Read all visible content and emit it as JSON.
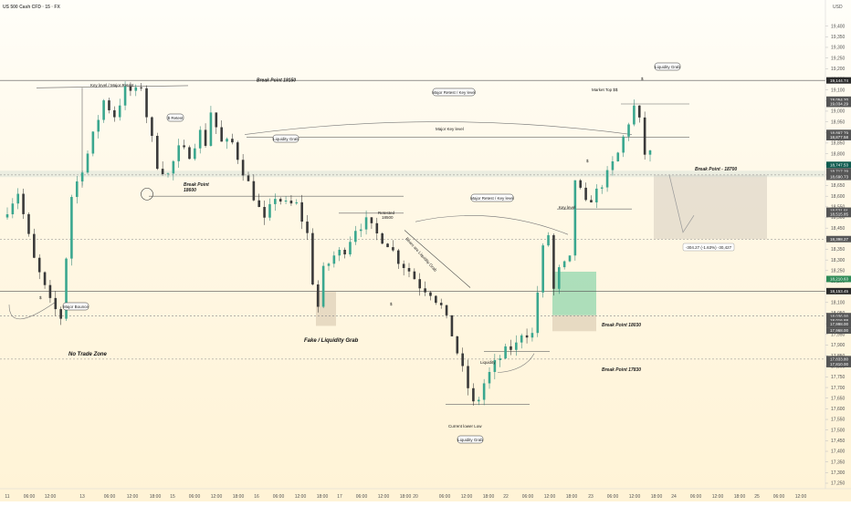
{
  "chart_data": {
    "type": "candlestick",
    "title": "US 500 Cash CFD · 15 · FX",
    "currency": "USD",
    "ylim": [
      17250,
      19450
    ],
    "y_ticks": [
      19400,
      19350,
      19300,
      19250,
      19200,
      19150,
      19100,
      19050,
      19000,
      18950,
      18900,
      18850,
      18800,
      18750,
      18700,
      18650,
      18600,
      18550,
      18500,
      18450,
      18400,
      18350,
      18300,
      18250,
      18200,
      18150,
      18100,
      18050,
      18000,
      17950,
      17900,
      17850,
      17800,
      17750,
      17700,
      17650,
      17600,
      17550,
      17500,
      17450,
      17400,
      17350,
      17300,
      17250
    ],
    "x_ticks": [
      "11",
      "06:00",
      "12:00",
      "13",
      "06:00",
      "12:00",
      "18:00",
      "15",
      "06:00",
      "12:00",
      "18:00",
      "16",
      "06:00",
      "12:00",
      "18:00",
      "17",
      "06:00",
      "12:00",
      "18:00",
      "20",
      "06:00",
      "12:00",
      "18:00",
      "22",
      "06:00",
      "12:00",
      "18:00",
      "23",
      "06:00",
      "12:00",
      "18:00",
      "24",
      "06:00",
      "12:00",
      "18:00",
      "25",
      "06:00",
      "12:00"
    ],
    "price_path": [
      [
        0,
        18500
      ],
      [
        3,
        18620
      ],
      [
        6,
        18300
      ],
      [
        9,
        18100
      ],
      [
        11,
        18030
      ],
      [
        13,
        18600
      ],
      [
        16,
        18800
      ],
      [
        19,
        19050
      ],
      [
        21,
        18980
      ],
      [
        23,
        19100
      ],
      [
        25,
        19090
      ],
      [
        26,
        19120
      ],
      [
        27,
        18980
      ],
      [
        29,
        18750
      ],
      [
        31,
        18700
      ],
      [
        33,
        18820
      ],
      [
        35,
        18800
      ],
      [
        37,
        18900
      ],
      [
        38,
        18850
      ],
      [
        39,
        19000
      ],
      [
        41,
        18850
      ],
      [
        43,
        18850
      ],
      [
        45,
        18720
      ],
      [
        47,
        18600
      ],
      [
        49,
        18480
      ],
      [
        51,
        18600
      ],
      [
        53,
        18560
      ],
      [
        55,
        18560
      ],
      [
        57,
        18420
      ],
      [
        58,
        18200
      ],
      [
        59,
        18080
      ],
      [
        60,
        18250
      ],
      [
        62,
        18320
      ],
      [
        64,
        18350
      ],
      [
        66,
        18450
      ],
      [
        68,
        18480
      ],
      [
        70,
        18420
      ],
      [
        72,
        18380
      ],
      [
        74,
        18300
      ],
      [
        76,
        18250
      ],
      [
        78,
        18180
      ],
      [
        80,
        18150
      ],
      [
        82,
        18080
      ],
      [
        84,
        17950
      ],
      [
        86,
        17780
      ],
      [
        88,
        17620
      ],
      [
        89,
        17650
      ],
      [
        90,
        17720
      ],
      [
        92,
        17810
      ],
      [
        94,
        17870
      ],
      [
        96,
        17900
      ],
      [
        97,
        17960
      ],
      [
        99,
        17950
      ],
      [
        100,
        18150
      ],
      [
        101,
        18350
      ],
      [
        102,
        18420
      ],
      [
        103,
        18160
      ],
      [
        104,
        18250
      ],
      [
        106,
        18300
      ],
      [
        107,
        18680
      ],
      [
        109,
        18560
      ],
      [
        111,
        18620
      ],
      [
        113,
        18700
      ],
      [
        115,
        18800
      ],
      [
        117,
        18950
      ],
      [
        118,
        19020
      ],
      [
        119,
        18950
      ],
      [
        120,
        18800
      ],
      [
        121,
        18760
      ]
    ],
    "candle_count": 121,
    "price_labels": [
      {
        "price": 19144.74,
        "text": "19,144.74",
        "color": "#2a2a2a"
      },
      {
        "price": 19054.2,
        "text": "19,054.20",
        "color": "#555555"
      },
      {
        "price": 19034.29,
        "text": "19,034.29",
        "color": "#555555"
      },
      {
        "price": 18897.79,
        "text": "18,897.79",
        "color": "#555555"
      },
      {
        "price": 18877.58,
        "text": "18,877.58",
        "color": "#555555"
      },
      {
        "price": 18747.53,
        "text": "18,747.53",
        "color": "#0f5c4f"
      },
      {
        "price": 18717.29,
        "text": "18,717.29",
        "color": "#555555"
      },
      {
        "price": 18699.25,
        "text": "18,699.25",
        "color": "#555555"
      },
      {
        "price": 18690.73,
        "text": "18,690.73",
        "color": "#555555"
      },
      {
        "price": 18531.91,
        "text": "18,531.91",
        "color": "#555555"
      },
      {
        "price": 18515.85,
        "text": "18,515.85",
        "color": "#555555"
      },
      {
        "price": 18398.27,
        "text": "18,398.27",
        "color": "#555555"
      },
      {
        "price": 18210.63,
        "text": "18,210.63",
        "color": "#2e8b57"
      },
      {
        "price": 18153.45,
        "text": "18,153.45",
        "color": "#2a2a2a"
      },
      {
        "price": 18036.0,
        "text": "18,036.00",
        "color": "#555555"
      },
      {
        "price": 18016.88,
        "text": "18,016.88",
        "color": "#555555"
      },
      {
        "price": 17998.0,
        "text": "17,998.00",
        "color": "#555555"
      },
      {
        "price": 17968.0,
        "text": "17,968.00",
        "color": "#555555"
      },
      {
        "price": 17833.8,
        "text": "17,833.80",
        "color": "#555555"
      },
      {
        "price": 17810.0,
        "text": "17,810.00",
        "color": "#555555"
      }
    ],
    "annotations": [
      {
        "text": "Key level / Major Retest",
        "style": "label"
      },
      {
        "text": "Break Point 19150",
        "style": "bold-italic"
      },
      {
        "text": "Major Retest / Key level",
        "style": "bubble"
      },
      {
        "text": "Major Key level",
        "style": "label"
      },
      {
        "text": "Market Top $$",
        "style": "label"
      },
      {
        "text": "Liquidity Grab",
        "style": "bubble"
      },
      {
        "text": "$",
        "style": "symbol"
      },
      {
        "text": "$ Retest",
        "style": "bubble"
      },
      {
        "text": "Liquidity Grab",
        "style": "bubble"
      },
      {
        "text": "Break Point",
        "style": "bold-italic"
      },
      {
        "text": "18600",
        "style": "bold-italic"
      },
      {
        "text": "$",
        "style": "symbol"
      },
      {
        "text": "Break Point - 18700",
        "style": "bold-italic"
      },
      {
        "text": "Major Retest / Key level",
        "style": "bubble"
      },
      {
        "text": "Key level",
        "style": "label"
      },
      {
        "text": "Retested",
        "style": "label"
      },
      {
        "text": "18500",
        "style": "label"
      },
      {
        "text": "Bears are Liquidity Grab",
        "style": "label"
      },
      {
        "text": "-304.27 (-1.63%) -30,427",
        "style": "measure"
      },
      {
        "text": "$",
        "style": "symbol"
      },
      {
        "text": "Major Bounce",
        "style": "bubble"
      },
      {
        "text": "$",
        "style": "symbol"
      },
      {
        "text": "Break Point 18030",
        "style": "bold-italic"
      },
      {
        "text": "No Trade Zone",
        "style": "big"
      },
      {
        "text": "Fake / Liquidity Grab",
        "style": "big"
      },
      {
        "text": "Liquidity",
        "style": "label"
      },
      {
        "text": "Break Point 17830",
        "style": "bold-italic"
      },
      {
        "text": "Current lower Low",
        "style": "label"
      },
      {
        "text": "Liquidity Grab",
        "style": "bubble"
      }
    ]
  }
}
